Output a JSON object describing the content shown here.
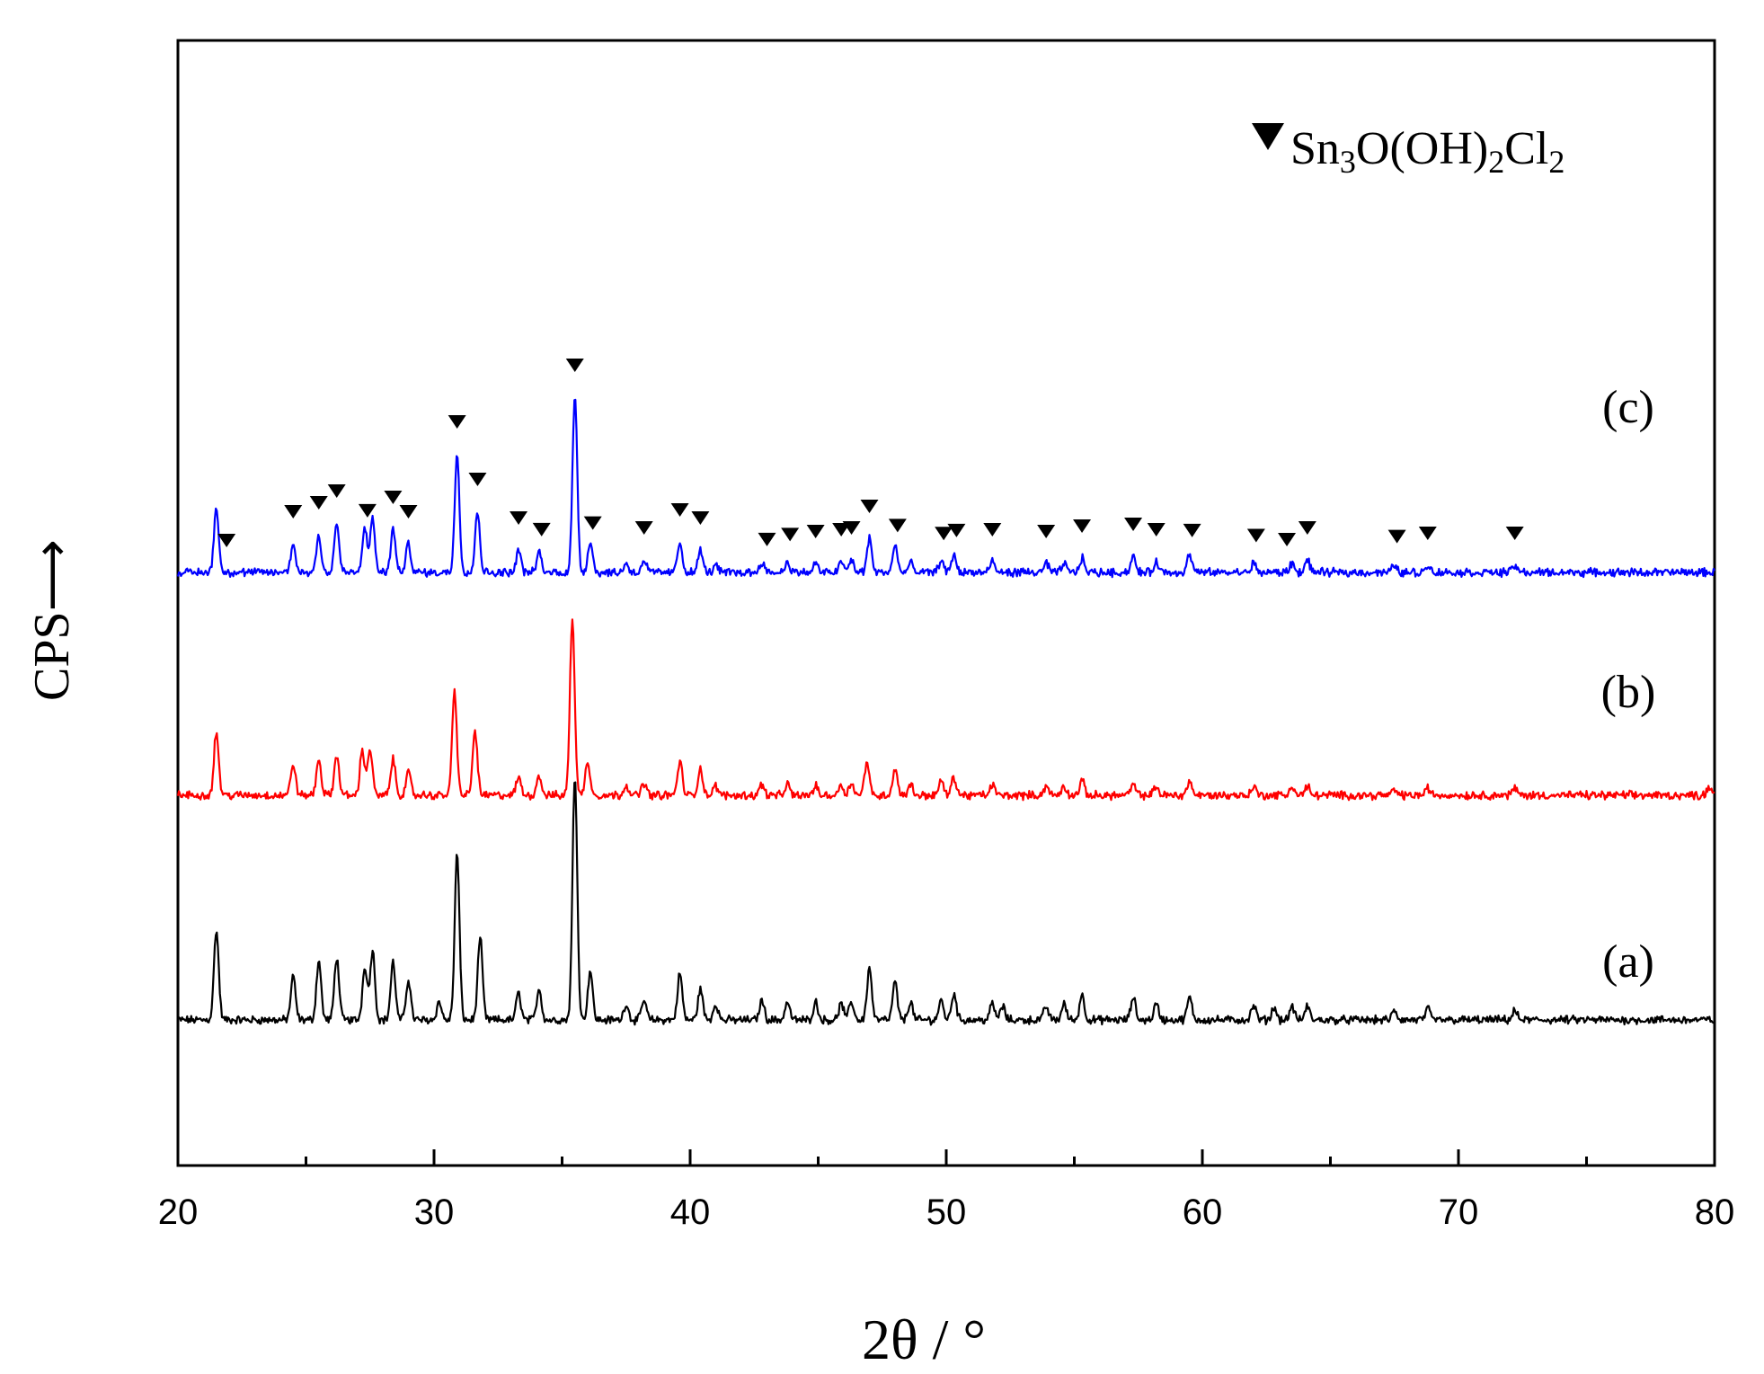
{
  "chart_data": {
    "type": "line",
    "xlabel": "2θ / °",
    "ylabel": "CPS⟶",
    "xlim": [
      20,
      80
    ],
    "x_ticks": [
      "20",
      "30",
      "40",
      "50",
      "60",
      "70",
      "80"
    ],
    "y_ticks_shown": false,
    "grid": false,
    "legend": {
      "placement": "top-right",
      "marker": "▼",
      "text_main": "Sn",
      "sub1": "3",
      "text_mid": "O(OH)",
      "sub2": "2",
      "text_cl": "Cl",
      "sub3": "2",
      "color": "#000000"
    },
    "series": [
      {
        "label": "(a)",
        "color": "#000000",
        "offset": 0,
        "peaks": [
          [
            21.5,
            100
          ],
          [
            24.5,
            48
          ],
          [
            25.5,
            66
          ],
          [
            26.2,
            70
          ],
          [
            27.3,
            60
          ],
          [
            27.6,
            78
          ],
          [
            28.4,
            64
          ],
          [
            29.0,
            45
          ],
          [
            30.2,
            20
          ],
          [
            30.9,
            185
          ],
          [
            31.8,
            92
          ],
          [
            33.3,
            30
          ],
          [
            34.1,
            35
          ],
          [
            35.5,
            272
          ],
          [
            36.1,
            55
          ],
          [
            37.5,
            18
          ],
          [
            38.2,
            22
          ],
          [
            39.6,
            52
          ],
          [
            40.4,
            35
          ],
          [
            41.0,
            18
          ],
          [
            42.8,
            22
          ],
          [
            43.8,
            20
          ],
          [
            44.9,
            20
          ],
          [
            45.9,
            18
          ],
          [
            46.3,
            20
          ],
          [
            47.0,
            58
          ],
          [
            48.0,
            42
          ],
          [
            48.6,
            20
          ],
          [
            49.8,
            22
          ],
          [
            50.3,
            30
          ],
          [
            51.8,
            18
          ],
          [
            52.2,
            15
          ],
          [
            53.9,
            15
          ],
          [
            54.6,
            18
          ],
          [
            55.3,
            28
          ],
          [
            57.3,
            25
          ],
          [
            58.2,
            18
          ],
          [
            59.5,
            25
          ],
          [
            62.0,
            16
          ],
          [
            62.8,
            14
          ],
          [
            63.5,
            15
          ],
          [
            64.1,
            15
          ],
          [
            67.5,
            10
          ],
          [
            68.8,
            12
          ],
          [
            72.2,
            10
          ]
        ]
      },
      {
        "label": "(b)",
        "color": "#ff0000",
        "offset": 250,
        "peaks": [
          [
            21.5,
            70
          ],
          [
            24.5,
            35
          ],
          [
            25.5,
            40
          ],
          [
            26.2,
            45
          ],
          [
            27.2,
            50
          ],
          [
            27.5,
            52
          ],
          [
            28.4,
            40
          ],
          [
            29.0,
            25
          ],
          [
            30.8,
            115
          ],
          [
            31.6,
            72
          ],
          [
            33.3,
            20
          ],
          [
            34.1,
            22
          ],
          [
            35.4,
            198
          ],
          [
            36.0,
            38
          ],
          [
            37.5,
            12
          ],
          [
            38.2,
            14
          ],
          [
            39.6,
            38
          ],
          [
            40.4,
            30
          ],
          [
            41.0,
            10
          ],
          [
            42.8,
            12
          ],
          [
            43.8,
            12
          ],
          [
            44.9,
            10
          ],
          [
            45.9,
            12
          ],
          [
            46.3,
            14
          ],
          [
            46.9,
            38
          ],
          [
            48.0,
            30
          ],
          [
            48.6,
            12
          ],
          [
            49.8,
            16
          ],
          [
            50.3,
            20
          ],
          [
            51.8,
            12
          ],
          [
            53.9,
            10
          ],
          [
            54.6,
            10
          ],
          [
            55.3,
            16
          ],
          [
            57.3,
            12
          ],
          [
            58.2,
            10
          ],
          [
            59.5,
            16
          ],
          [
            62.0,
            10
          ],
          [
            63.5,
            10
          ],
          [
            64.1,
            10
          ],
          [
            67.5,
            6
          ],
          [
            68.8,
            8
          ],
          [
            72.2,
            8
          ],
          [
            79.8,
            10
          ]
        ]
      },
      {
        "label": "(c)",
        "color": "#0000ff",
        "offset": 498,
        "peaks": [
          [
            21.5,
            72
          ],
          [
            24.5,
            32
          ],
          [
            25.5,
            42
          ],
          [
            26.2,
            55
          ],
          [
            27.3,
            50
          ],
          [
            27.6,
            58
          ],
          [
            28.4,
            48
          ],
          [
            29.0,
            32
          ],
          [
            30.9,
            132
          ],
          [
            31.7,
            68
          ],
          [
            33.3,
            25
          ],
          [
            34.1,
            22
          ],
          [
            35.5,
            195
          ],
          [
            36.1,
            35
          ],
          [
            37.5,
            10
          ],
          [
            38.2,
            14
          ],
          [
            39.6,
            34
          ],
          [
            40.4,
            25
          ],
          [
            41.0,
            8
          ],
          [
            42.8,
            12
          ],
          [
            43.8,
            12
          ],
          [
            44.9,
            10
          ],
          [
            45.9,
            12
          ],
          [
            46.3,
            14
          ],
          [
            47.0,
            38
          ],
          [
            48.0,
            30
          ],
          [
            48.6,
            10
          ],
          [
            49.8,
            14
          ],
          [
            50.3,
            20
          ],
          [
            51.8,
            12
          ],
          [
            53.9,
            10
          ],
          [
            54.6,
            10
          ],
          [
            55.3,
            16
          ],
          [
            57.3,
            18
          ],
          [
            58.2,
            12
          ],
          [
            59.5,
            20
          ],
          [
            62.0,
            10
          ],
          [
            63.5,
            10
          ],
          [
            64.1,
            14
          ],
          [
            67.5,
            8
          ],
          [
            68.8,
            8
          ],
          [
            72.2,
            8
          ]
        ],
        "markers_x": [
          21.9,
          24.5,
          25.5,
          26.2,
          27.4,
          28.4,
          29.0,
          30.9,
          31.7,
          33.3,
          34.2,
          35.5,
          36.2,
          38.2,
          39.6,
          40.4,
          43.0,
          43.9,
          44.9,
          45.9,
          46.3,
          47.0,
          48.1,
          49.9,
          50.4,
          51.8,
          53.9,
          55.3,
          57.3,
          58.2,
          59.6,
          62.1,
          63.3,
          64.1,
          67.6,
          68.8,
          72.2
        ]
      }
    ]
  }
}
